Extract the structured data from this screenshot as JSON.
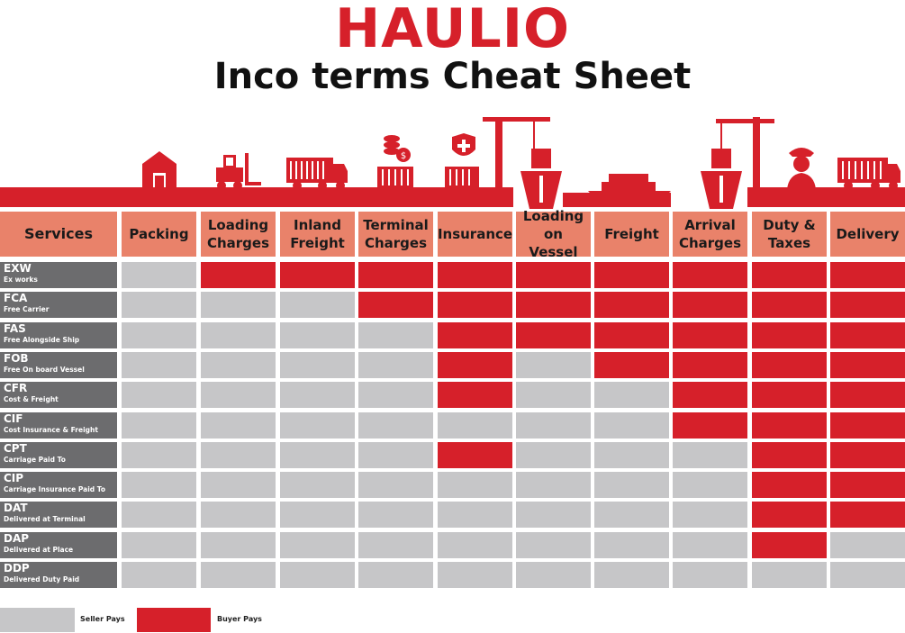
{
  "brand": {
    "logo_text": "HAULIO",
    "title": "Inco terms Cheat Sheet",
    "accent": "#d6202a",
    "header_color": "#e9826a",
    "row_label_color": "#6c6c6e",
    "seller_color": "#c6c6c8"
  },
  "table": {
    "corner_label": "Services",
    "columns": [
      "Packing",
      "Loading Charges",
      "Inland Freight",
      "Terminal Charges",
      "Insurance",
      "Loading on Vessel",
      "Freight",
      "Arrival Charges",
      "Duty & Taxes",
      "Delivery"
    ],
    "rows": [
      {
        "code": "EXW",
        "name": "Ex works",
        "cells": [
          "S",
          "B",
          "B",
          "B",
          "B",
          "B",
          "B",
          "B",
          "B",
          "B"
        ]
      },
      {
        "code": "FCA",
        "name": "Free Carrier",
        "cells": [
          "S",
          "S",
          "S",
          "B",
          "B",
          "B",
          "B",
          "B",
          "B",
          "B"
        ]
      },
      {
        "code": "FAS",
        "name": "Free Alongside Ship",
        "cells": [
          "S",
          "S",
          "S",
          "S",
          "B",
          "B",
          "B",
          "B",
          "B",
          "B"
        ]
      },
      {
        "code": "FOB",
        "name": "Free On board Vessel",
        "cells": [
          "S",
          "S",
          "S",
          "S",
          "B",
          "S",
          "B",
          "B",
          "B",
          "B"
        ]
      },
      {
        "code": "CFR",
        "name": "Cost & Freight",
        "cells": [
          "S",
          "S",
          "S",
          "S",
          "B",
          "S",
          "S",
          "B",
          "B",
          "B"
        ]
      },
      {
        "code": "CIF",
        "name": "Cost Insurance & Freight",
        "cells": [
          "S",
          "S",
          "S",
          "S",
          "S",
          "S",
          "S",
          "B",
          "B",
          "B"
        ]
      },
      {
        "code": "CPT",
        "name": "Carriage Paid To",
        "cells": [
          "S",
          "S",
          "S",
          "S",
          "B",
          "S",
          "S",
          "S",
          "B",
          "B"
        ]
      },
      {
        "code": "CIP",
        "name": "Carriage Insurance Paid To",
        "cells": [
          "S",
          "S",
          "S",
          "S",
          "S",
          "S",
          "S",
          "S",
          "B",
          "B"
        ]
      },
      {
        "code": "DAT",
        "name": "Delivered at Terminal",
        "cells": [
          "S",
          "S",
          "S",
          "S",
          "S",
          "S",
          "S",
          "S",
          "B",
          "B"
        ]
      },
      {
        "code": "DAP",
        "name": "Delivered at Place",
        "cells": [
          "S",
          "S",
          "S",
          "S",
          "S",
          "S",
          "S",
          "S",
          "B",
          "S"
        ]
      },
      {
        "code": "DDP",
        "name": "Delivered Duty Paid",
        "cells": [
          "S",
          "S",
          "S",
          "S",
          "S",
          "S",
          "S",
          "S",
          "S",
          "S"
        ]
      }
    ]
  },
  "legend": {
    "seller": "Seller Pays",
    "buyer": "Buyer Pays"
  },
  "icons": [
    "warehouse-icon",
    "forklift-icon",
    "truck-icon",
    "terminal-container-icon",
    "insurance-container-icon",
    "crane-ship-icon",
    "cargo-ship-icon",
    "crane-ship-icon",
    "customs-officer-icon",
    "delivery-truck-icon"
  ]
}
